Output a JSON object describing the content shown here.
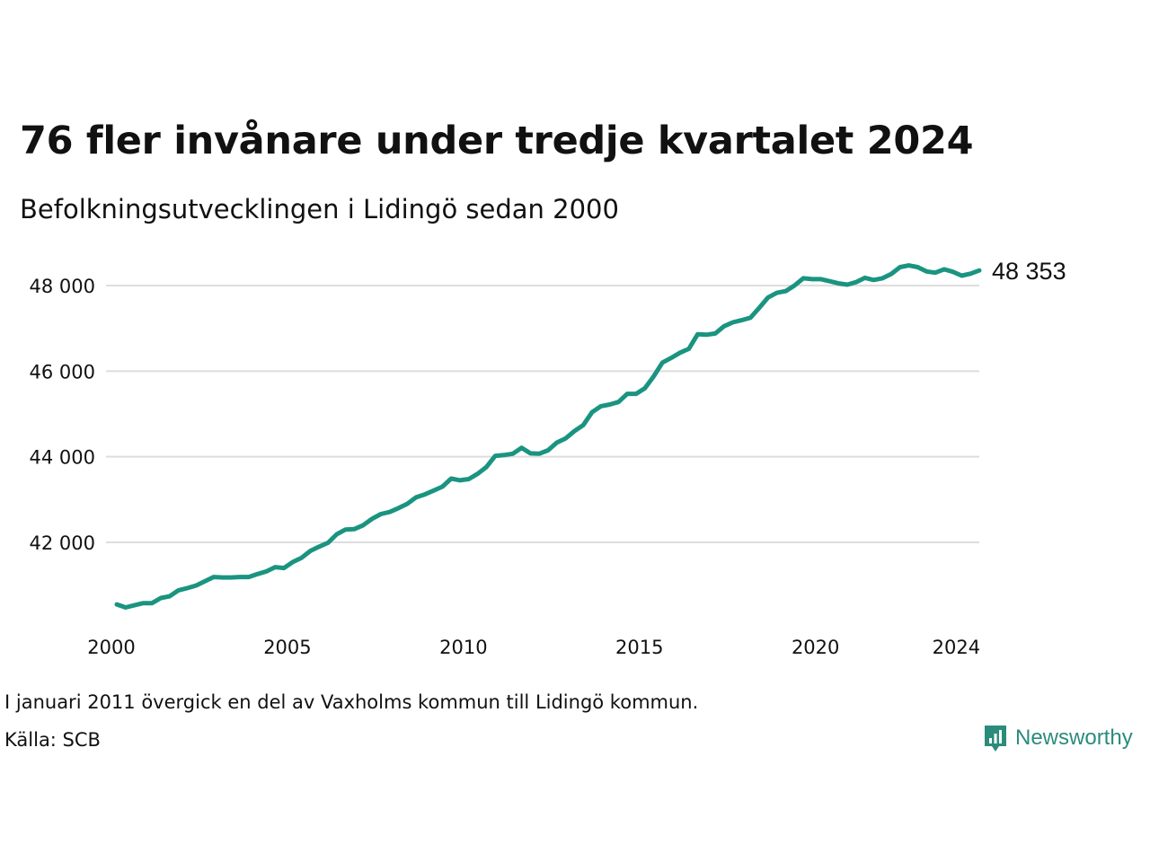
{
  "title": "76 fler invånare under tredje kvartalet 2024",
  "subtitle": "Befolkningsutvecklingen i Lidingö sedan 2000",
  "note": "I januari 2011 övergick en del av Vaxholms kommun till Lidingö kommun.",
  "source": "Källa: SCB",
  "brand": "Newsworthy",
  "colors": {
    "line": "#1a9480",
    "grid": "#dddddd",
    "brand": "#2b8c7c"
  },
  "chart_data": {
    "type": "line",
    "title": "76 fler invånare under tredje kvartalet 2024",
    "subtitle": "Befolkningsutvecklingen i Lidingö sedan 2000",
    "xlim": [
      2000,
      2024.5
    ],
    "ylim": [
      40000,
      49200
    ],
    "yticks": [
      42000,
      44000,
      46000,
      48000
    ],
    "ytick_labels": [
      "42 000",
      "44 000",
      "46 000",
      "48 000"
    ],
    "xticks": [
      2000,
      2005,
      2010,
      2015,
      2020,
      2024
    ],
    "xtick_labels": [
      "2000",
      "2005",
      "2010",
      "2015",
      "2020",
      "2024"
    ],
    "grid": "horizontal",
    "end_label": "48 353",
    "series": [
      {
        "x": [
          2000.0,
          2000.25,
          2000.5,
          2000.75,
          2001.0,
          2001.25,
          2001.5,
          2001.75,
          2002.0,
          2002.25,
          2002.5,
          2002.75,
          2003.0,
          2003.25,
          2003.5,
          2003.75,
          2004.0,
          2004.25,
          2004.5,
          2004.75,
          2005.0,
          2005.25,
          2005.5,
          2005.75,
          2006.0,
          2006.25,
          2006.5,
          2006.75,
          2007.0,
          2007.25,
          2007.5,
          2007.75,
          2008.0,
          2008.25,
          2008.5,
          2008.75,
          2009.0,
          2009.25,
          2009.5,
          2009.75,
          2010.0,
          2010.25,
          2010.5,
          2010.75,
          2011.0,
          2011.25,
          2011.5,
          2011.75,
          2012.0,
          2012.25,
          2012.5,
          2012.75,
          2013.0,
          2013.25,
          2013.5,
          2013.75,
          2014.0,
          2014.25,
          2014.5,
          2014.75,
          2015.0,
          2015.25,
          2015.5,
          2015.75,
          2016.0,
          2016.25,
          2016.5,
          2016.75,
          2017.0,
          2017.25,
          2017.5,
          2017.75,
          2018.0,
          2018.25,
          2018.5,
          2018.75,
          2019.0,
          2019.25,
          2019.5,
          2019.75,
          2020.0,
          2020.25,
          2020.5,
          2020.75,
          2021.0,
          2021.25,
          2021.5,
          2021.75,
          2022.0,
          2022.25,
          2022.5,
          2022.75,
          2023.0,
          2023.25,
          2023.5,
          2023.75,
          2024.0,
          2024.25,
          2024.5
        ],
        "values": [
          40550,
          40480,
          40530,
          40580,
          40580,
          40700,
          40740,
          40880,
          40930,
          40990,
          41090,
          41190,
          41180,
          41180,
          41190,
          41190,
          41260,
          41320,
          41420,
          41400,
          41540,
          41640,
          41800,
          41900,
          41990,
          42190,
          42300,
          42310,
          42400,
          42550,
          42660,
          42710,
          42800,
          42900,
          43050,
          43120,
          43210,
          43300,
          43490,
          43450,
          43480,
          43600,
          43760,
          44020,
          44040,
          44070,
          44210,
          44080,
          44070,
          44150,
          44330,
          44430,
          44600,
          44740,
          45040,
          45180,
          45220,
          45280,
          45470,
          45470,
          45600,
          45880,
          46200,
          46310,
          46430,
          46520,
          46860,
          46850,
          46880,
          47050,
          47140,
          47190,
          47250,
          47480,
          47720,
          47830,
          47870,
          48000,
          48170,
          48150,
          48150,
          48100,
          48050,
          48020,
          48080,
          48180,
          48130,
          48170,
          48270,
          48430,
          48470,
          48430,
          48330,
          48300,
          48380,
          48320,
          48230,
          48277,
          48353
        ]
      }
    ]
  }
}
